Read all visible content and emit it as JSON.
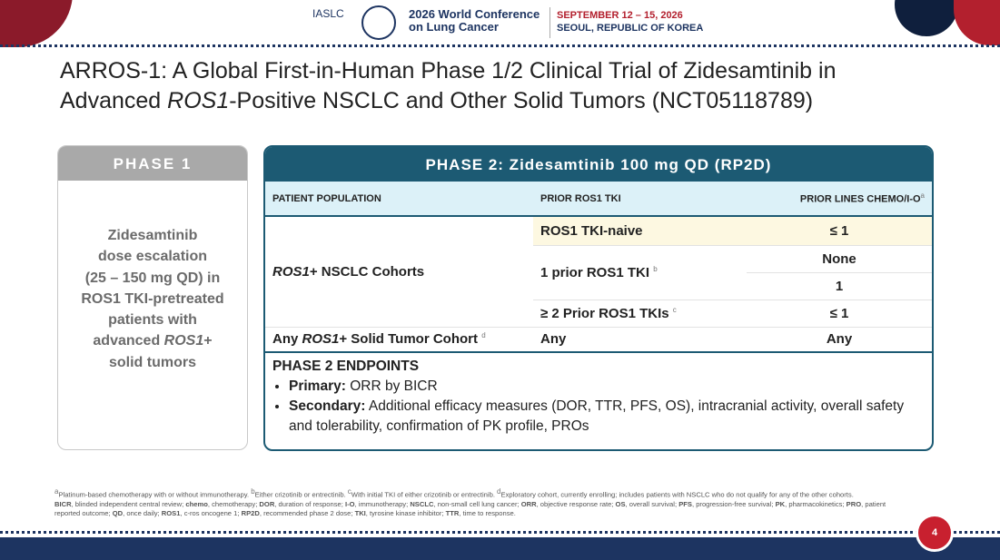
{
  "header": {
    "society": "IASLC",
    "conference": [
      "2026 World Conference",
      "on Lung Cancer"
    ],
    "dates": "SEPTEMBER 12 – 15, 2026",
    "location": "SEOUL, REPUBLIC OF KOREA"
  },
  "title": {
    "line1": "ARROS-1: A Global First-in-Human Phase 1/2  Clinical Trial of Zidesamtinib in",
    "line2": [
      "Advanced ",
      "ROS1",
      "-Positive NSCLC and Other Solid Tumors (NCT05118789)"
    ]
  },
  "phase1": {
    "heading": "PHASE 1",
    "lines": [
      "Zidesamtinib",
      "dose escalation",
      "(25 – 150 mg QD) in",
      "ROS1 TKI-pretreated",
      "patients with"
    ],
    "last_line": [
      "advanced ",
      "ROS1",
      "+"
    ],
    "end_line": "solid tumors"
  },
  "phase2": {
    "heading": "PHASE 2: Zidesamtinib 100 mg QD (RP2D)",
    "columns": [
      "PATIENT POPULATION",
      "PRIOR ROS1 TKI",
      "PRIOR LINES CHEMO/I-O"
    ],
    "column_note": "a",
    "nsclc_cohort": [
      "ROS1",
      "+ NSCLC Cohorts"
    ],
    "rows": [
      {
        "tki": "ROS1 TKI-naive",
        "lines": "≤ 1"
      },
      {
        "tki": "1 prior ROS1 TKI",
        "note": "b",
        "lines": "None"
      },
      {
        "lines": "1"
      },
      {
        "tki": "≥ 2 Prior ROS1 TKIs",
        "note": "c",
        "lines": "≤ 1"
      }
    ],
    "solid_tumor": {
      "population": [
        "Any ",
        "ROS1",
        "+ Solid Tumor Cohort"
      ],
      "note": "d",
      "tki": "Any",
      "lines": "Any"
    },
    "endpoints": {
      "heading": "PHASE 2 ENDPOINTS",
      "primary_label": "Primary:",
      "primary": "ORR by BICR",
      "secondary_label": "Secondary:",
      "secondary": "Additional efficacy measures (DOR, TTR, PFS, OS), intracranial activity, overall safety and tolerability, confirmation of PK profile, PROs"
    }
  },
  "footnotes": [
    {
      "mark": "a",
      "text": "Platinum-based chemotherapy with or without immunotherapy. "
    },
    {
      "mark": "b",
      "text": "Either crizotinib or entrectinib. "
    },
    {
      "mark": "c",
      "text": "With initial TKI of either crizotinib or entrectinib. "
    },
    {
      "mark": "d",
      "text": "Exploratory cohort, currently enrolling; includes patients with NSCLC who do not qualify for any of the other cohorts."
    }
  ],
  "abbreviations": [
    {
      "term": "BICR",
      "definition": ", blinded independent central review; "
    },
    {
      "term": "chemo",
      "definition": ", chemotherapy; "
    },
    {
      "term": "DOR",
      "definition": ", duration of response; "
    },
    {
      "term": "I-O",
      "definition": ", immunotherapy; "
    },
    {
      "term": "NSCLC",
      "definition": ", non-small cell lung cancer; "
    },
    {
      "term": "ORR",
      "definition": ", objective response rate; "
    },
    {
      "term": "OS",
      "definition": ", overall survival; "
    },
    {
      "term": "PFS",
      "definition": ", progression-free survival; "
    },
    {
      "term": "PK",
      "definition": ", pharmacokinetics; "
    },
    {
      "term": "PRO",
      "definition": ", patient reported outcome; "
    },
    {
      "term": "QD",
      "definition": ", once daily; "
    },
    {
      "term": "ROS1",
      "definition": ", c-ros oncogene 1; "
    },
    {
      "term": "RP2D",
      "definition": ", recommended phase 2 dose; "
    },
    {
      "term": "TKI",
      "definition": ", tyrosine kinase inhibitor; "
    },
    {
      "term": "TTR",
      "definition": ", time to response."
    }
  ],
  "page_number": "4"
}
